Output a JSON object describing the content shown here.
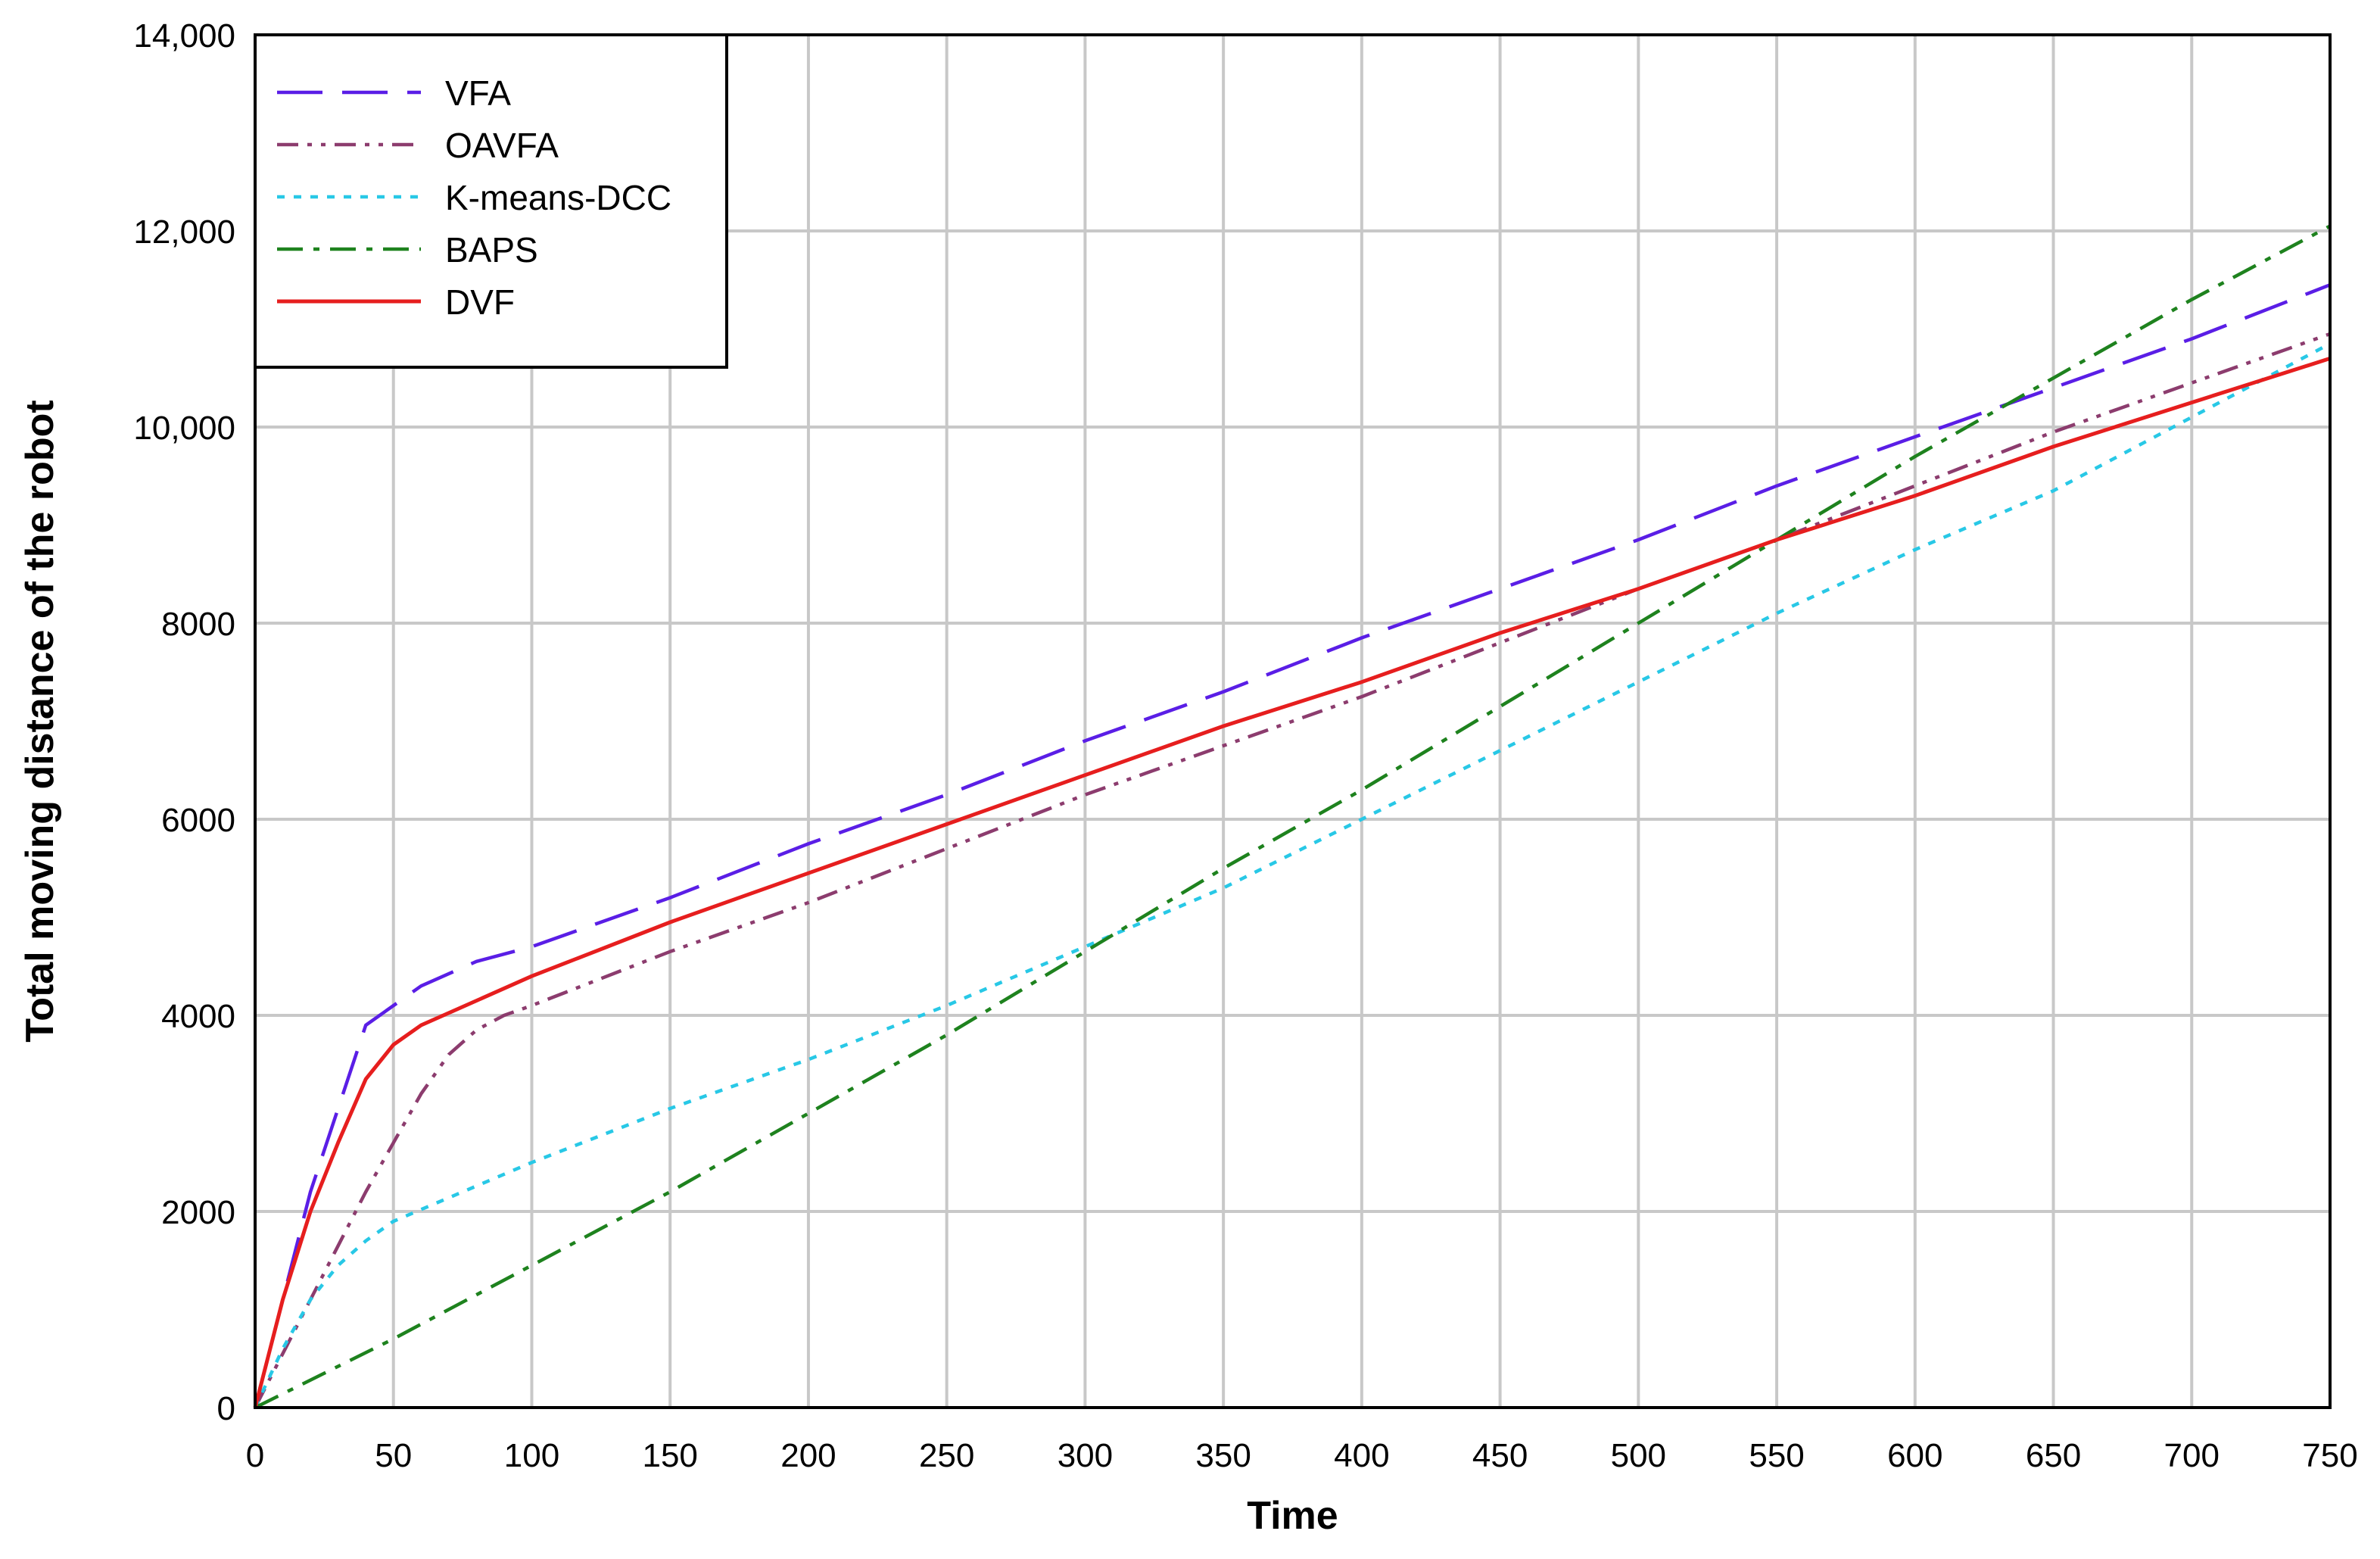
{
  "chart_data": {
    "type": "line",
    "title": "",
    "xlabel": "Time",
    "ylabel": "Total moving distance of the robot",
    "xlim": [
      0,
      750
    ],
    "ylim": [
      0,
      14000
    ],
    "x_ticks": [
      0,
      50,
      100,
      150,
      200,
      250,
      300,
      350,
      400,
      450,
      500,
      550,
      600,
      650,
      700,
      750
    ],
    "x_tick_labels": [
      "0",
      "50",
      "100",
      "150",
      "200",
      "250",
      "300",
      "350",
      "400",
      "450",
      "500",
      "550",
      "600",
      "650",
      "700",
      "750"
    ],
    "y_ticks": [
      0,
      2000,
      4000,
      6000,
      8000,
      10000,
      12000,
      14000
    ],
    "y_tick_labels": [
      "0",
      "2000",
      "4000",
      "6000",
      "8000",
      "10,000",
      "12,000",
      "14,000"
    ],
    "grid": true,
    "legend_position": "top-left",
    "series": [
      {
        "name": "VFA",
        "color": "#5a1ee6",
        "dash": "long-dash",
        "x": [
          0,
          20,
          40,
          60,
          80,
          100,
          150,
          200,
          250,
          300,
          350,
          400,
          450,
          500,
          550,
          600,
          650,
          700,
          750
        ],
        "y": [
          0,
          2200,
          3900,
          4300,
          4550,
          4700,
          5200,
          5750,
          6250,
          6800,
          7300,
          7850,
          8350,
          8850,
          9400,
          9900,
          10400,
          10900,
          11450
        ]
      },
      {
        "name": "OAVFA",
        "color": "#8c3c6e",
        "dash": "dash-dot-dot",
        "x": [
          0,
          20,
          40,
          50,
          60,
          70,
          80,
          90,
          100,
          150,
          200,
          250,
          300,
          350,
          400,
          450,
          500,
          550,
          600,
          650,
          700,
          750
        ],
        "y": [
          0,
          1100,
          2200,
          2700,
          3200,
          3600,
          3850,
          4000,
          4100,
          4650,
          5150,
          5700,
          6250,
          6750,
          7250,
          7800,
          8350,
          8850,
          9400,
          9950,
          10450,
          10950
        ]
      },
      {
        "name": "K-means-DCC",
        "color": "#28c8e6",
        "dash": "dotted",
        "x": [
          0,
          10,
          20,
          30,
          40,
          50,
          100,
          150,
          200,
          250,
          300,
          350,
          400,
          450,
          500,
          550,
          600,
          650,
          700,
          750
        ],
        "y": [
          0,
          600,
          1100,
          1450,
          1700,
          1900,
          2500,
          3050,
          3550,
          4100,
          4700,
          5300,
          6000,
          6700,
          7400,
          8100,
          8750,
          9350,
          10100,
          10850
        ]
      },
      {
        "name": "BAPS",
        "color": "#1e821e",
        "dash": "dash-dot",
        "x": [
          0,
          50,
          100,
          150,
          200,
          250,
          300,
          350,
          400,
          450,
          500,
          550,
          600,
          650,
          700,
          750
        ],
        "y": [
          0,
          700,
          1450,
          2200,
          3000,
          3800,
          4650,
          5500,
          6300,
          7150,
          8000,
          8850,
          9700,
          10500,
          11300,
          12050
        ]
      },
      {
        "name": "DVF",
        "color": "#e61e1e",
        "dash": "solid",
        "x": [
          0,
          10,
          20,
          30,
          40,
          50,
          60,
          80,
          100,
          150,
          200,
          250,
          300,
          350,
          400,
          450,
          500,
          550,
          600,
          650,
          700,
          750
        ],
        "y": [
          0,
          1100,
          2000,
          2700,
          3350,
          3700,
          3900,
          4150,
          4400,
          4950,
          5450,
          5950,
          6450,
          6950,
          7400,
          7900,
          8350,
          8850,
          9300,
          9800,
          10250,
          10700
        ]
      }
    ]
  }
}
